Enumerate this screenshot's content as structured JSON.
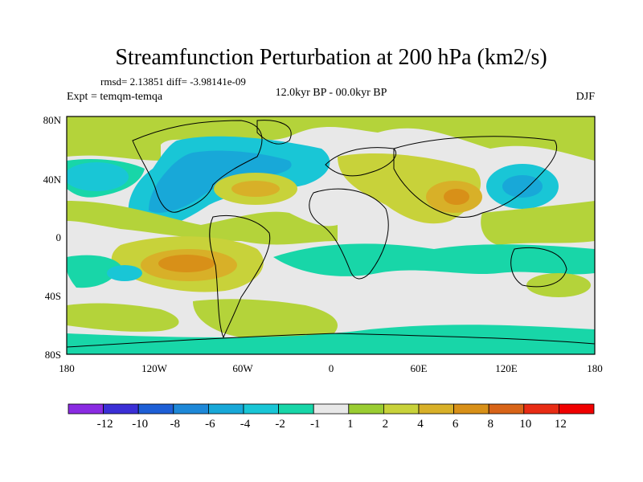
{
  "title": "Streamfunction Perturbation at 200 hPa (km2/s)",
  "stats": "rmsd= 2.13851 diff= -3.98141e-09",
  "expt": "Expt = temqm-temqa",
  "period": "12.0kyr BP - 00.0kyr BP",
  "season": "DJF",
  "lat_labels": [
    "80N",
    "40N",
    "0",
    "40S",
    "80S"
  ],
  "lon_labels": [
    "180",
    "120W",
    "60W",
    "0",
    "60E",
    "120E",
    "180"
  ],
  "colorbar": {
    "labels": [
      "-12",
      "-10",
      "-8",
      "-6",
      "-4",
      "-2",
      "-1",
      "1",
      "2",
      "4",
      "6",
      "8",
      "10",
      "12"
    ],
    "colors": [
      "#8a2be2",
      "#3b2fd6",
      "#1e5fd6",
      "#1e88d8",
      "#18a8d8",
      "#19c6d6",
      "#18d6a8",
      "#e8e8e8",
      "#9acd32",
      "#c8d23a",
      "#d8b028",
      "#d89018",
      "#d86418",
      "#e82c14",
      "#f00000"
    ]
  },
  "colors": {
    "ocean_neutral": "#e8e8e8",
    "coast": "#000000"
  }
}
